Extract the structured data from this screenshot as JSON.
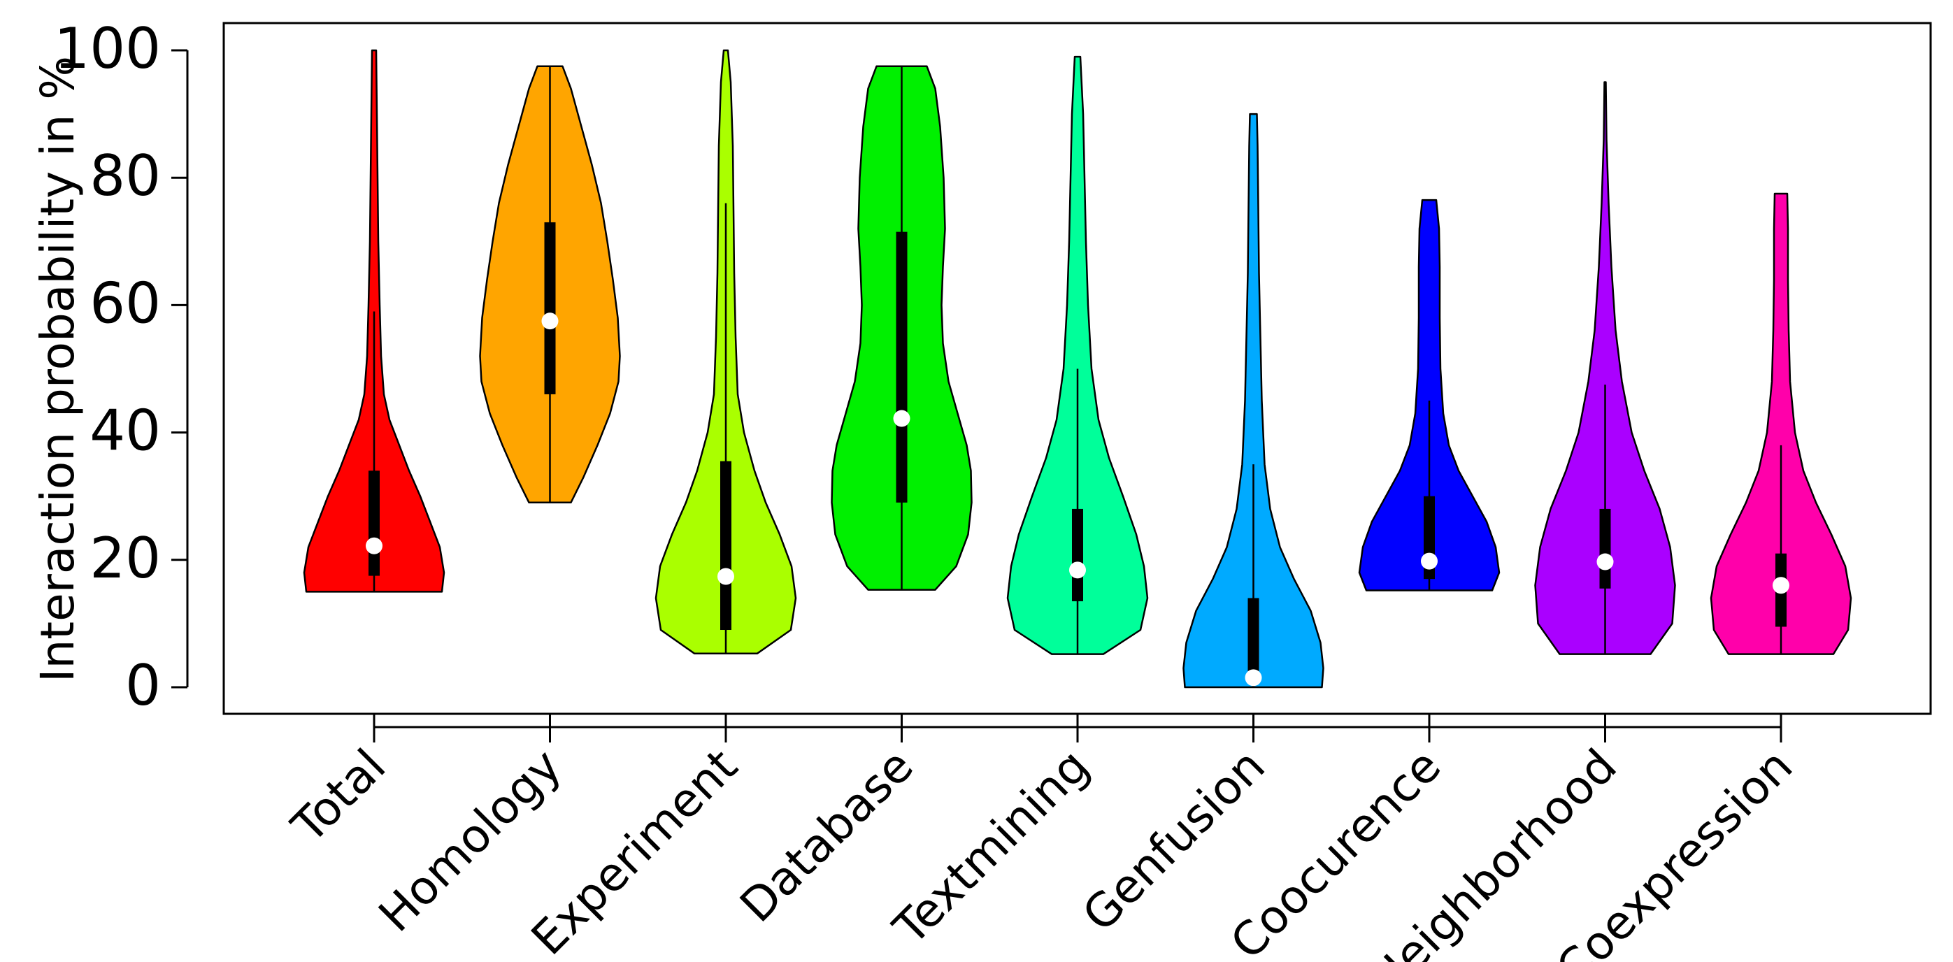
{
  "chart_data": {
    "type": "violin",
    "title": "",
    "ylabel": "Interaction probability in %",
    "xlabel": "",
    "ylim": [
      0,
      100
    ],
    "yticks": [
      0,
      20,
      40,
      60,
      80,
      100
    ],
    "grid": false,
    "legend": "none",
    "categories": [
      "Total",
      "Homology",
      "Experiment",
      "Database",
      "Textmining",
      "Genfusion",
      "Coocurence",
      "Neighborhood",
      "Coexpression"
    ],
    "series": [
      {
        "category": "Total",
        "color": "#FF0000",
        "min": 15,
        "max": 100,
        "q1": 17.5,
        "q3": 34,
        "median": 22.2,
        "whisker_low": 15,
        "whisker_high": 59,
        "density": [
          [
            15,
            0.97
          ],
          [
            18,
            1.0
          ],
          [
            22,
            0.94
          ],
          [
            26,
            0.8
          ],
          [
            30,
            0.66
          ],
          [
            34,
            0.5
          ],
          [
            38,
            0.36
          ],
          [
            42,
            0.22
          ],
          [
            46,
            0.14
          ],
          [
            52,
            0.1
          ],
          [
            60,
            0.08
          ],
          [
            70,
            0.06
          ],
          [
            80,
            0.05
          ],
          [
            90,
            0.04
          ],
          [
            100,
            0.03
          ]
        ]
      },
      {
        "category": "Homology",
        "color": "#FFA500",
        "min": 29,
        "max": 97.5,
        "q1": 46,
        "q3": 73,
        "median": 57.5,
        "whisker_low": 29,
        "whisker_high": 97.5,
        "density": [
          [
            29,
            0.3
          ],
          [
            33,
            0.48
          ],
          [
            38,
            0.68
          ],
          [
            43,
            0.86
          ],
          [
            48,
            0.98
          ],
          [
            52,
            1.0
          ],
          [
            58,
            0.97
          ],
          [
            64,
            0.9
          ],
          [
            70,
            0.82
          ],
          [
            76,
            0.73
          ],
          [
            82,
            0.6
          ],
          [
            88,
            0.45
          ],
          [
            94,
            0.3
          ],
          [
            97.5,
            0.18
          ]
        ]
      },
      {
        "category": "Experiment",
        "color": "#AAFF00",
        "min": 5.3,
        "max": 100,
        "q1": 9,
        "q3": 35.5,
        "median": 17.4,
        "whisker_low": 5.3,
        "whisker_high": 76,
        "density": [
          [
            5.3,
            0.45
          ],
          [
            9,
            0.93
          ],
          [
            14,
            1.0
          ],
          [
            19,
            0.94
          ],
          [
            24,
            0.77
          ],
          [
            29,
            0.57
          ],
          [
            34,
            0.41
          ],
          [
            40,
            0.26
          ],
          [
            46,
            0.17
          ],
          [
            55,
            0.14
          ],
          [
            65,
            0.12
          ],
          [
            75,
            0.11
          ],
          [
            85,
            0.1
          ],
          [
            95,
            0.07
          ],
          [
            100,
            0.03
          ]
        ]
      },
      {
        "category": "Database",
        "color": "#00F000",
        "min": 15.3,
        "max": 97.5,
        "q1": 29,
        "q3": 71.5,
        "median": 42.2,
        "whisker_low": 15.3,
        "whisker_high": 97.5,
        "density": [
          [
            15.3,
            0.48
          ],
          [
            19,
            0.78
          ],
          [
            24,
            0.95
          ],
          [
            29,
            1.0
          ],
          [
            34,
            0.99
          ],
          [
            38,
            0.93
          ],
          [
            43,
            0.8
          ],
          [
            48,
            0.67
          ],
          [
            54,
            0.59
          ],
          [
            60,
            0.57
          ],
          [
            66,
            0.59
          ],
          [
            72,
            0.62
          ],
          [
            80,
            0.6
          ],
          [
            88,
            0.55
          ],
          [
            94,
            0.48
          ],
          [
            97.5,
            0.36
          ]
        ]
      },
      {
        "category": "Textmining",
        "color": "#00FF9A",
        "min": 5.2,
        "max": 99,
        "q1": 13.5,
        "q3": 28,
        "median": 18.4,
        "whisker_low": 5.2,
        "whisker_high": 50,
        "density": [
          [
            5.2,
            0.37
          ],
          [
            9,
            0.9
          ],
          [
            14,
            1.0
          ],
          [
            19,
            0.95
          ],
          [
            24,
            0.84
          ],
          [
            30,
            0.65
          ],
          [
            36,
            0.45
          ],
          [
            42,
            0.3
          ],
          [
            50,
            0.2
          ],
          [
            60,
            0.15
          ],
          [
            70,
            0.12
          ],
          [
            80,
            0.1
          ],
          [
            90,
            0.08
          ],
          [
            99,
            0.04
          ]
        ]
      },
      {
        "category": "Genfusion",
        "color": "#00AAFF",
        "min": 0,
        "max": 90,
        "q1": 1.5,
        "q3": 14,
        "median": 1.5,
        "whisker_low": 0,
        "whisker_high": 35,
        "density": [
          [
            0,
            0.98
          ],
          [
            3,
            1.0
          ],
          [
            7,
            0.96
          ],
          [
            12,
            0.82
          ],
          [
            17,
            0.58
          ],
          [
            22,
            0.38
          ],
          [
            28,
            0.24
          ],
          [
            35,
            0.16
          ],
          [
            45,
            0.12
          ],
          [
            55,
            0.1
          ],
          [
            65,
            0.08
          ],
          [
            75,
            0.07
          ],
          [
            85,
            0.06
          ],
          [
            90,
            0.05
          ]
        ]
      },
      {
        "category": "Coocurence",
        "color": "#0000FF",
        "min": 15.2,
        "max": 76.5,
        "q1": 17,
        "q3": 30,
        "median": 19.8,
        "whisker_low": 15.2,
        "whisker_high": 45,
        "density": [
          [
            15.2,
            0.9
          ],
          [
            18,
            1.0
          ],
          [
            22,
            0.95
          ],
          [
            26,
            0.82
          ],
          [
            30,
            0.62
          ],
          [
            34,
            0.42
          ],
          [
            38,
            0.28
          ],
          [
            43,
            0.2
          ],
          [
            50,
            0.16
          ],
          [
            58,
            0.15
          ],
          [
            66,
            0.15
          ],
          [
            72,
            0.14
          ],
          [
            76.5,
            0.1
          ]
        ]
      },
      {
        "category": "Neighborhood",
        "color": "#AA00FF",
        "min": 5.2,
        "max": 95,
        "q1": 15.5,
        "q3": 28,
        "median": 19.7,
        "whisker_low": 5.2,
        "whisker_high": 47.5,
        "density": [
          [
            5.2,
            0.65
          ],
          [
            10,
            0.96
          ],
          [
            16,
            1.0
          ],
          [
            22,
            0.93
          ],
          [
            28,
            0.78
          ],
          [
            34,
            0.56
          ],
          [
            40,
            0.38
          ],
          [
            48,
            0.24
          ],
          [
            56,
            0.15
          ],
          [
            66,
            0.09
          ],
          [
            76,
            0.05
          ],
          [
            86,
            0.02
          ],
          [
            95,
            0.01
          ]
        ]
      },
      {
        "category": "Coexpression",
        "color": "#FF00AA",
        "min": 5.2,
        "max": 77.5,
        "q1": 9.5,
        "q3": 21,
        "median": 16,
        "whisker_low": 5.2,
        "whisker_high": 38,
        "density": [
          [
            5.2,
            0.75
          ],
          [
            9,
            0.96
          ],
          [
            14,
            1.0
          ],
          [
            19,
            0.92
          ],
          [
            24,
            0.72
          ],
          [
            29,
            0.5
          ],
          [
            34,
            0.32
          ],
          [
            40,
            0.2
          ],
          [
            48,
            0.13
          ],
          [
            56,
            0.11
          ],
          [
            64,
            0.1
          ],
          [
            72,
            0.1
          ],
          [
            77.5,
            0.09
          ]
        ]
      }
    ]
  }
}
